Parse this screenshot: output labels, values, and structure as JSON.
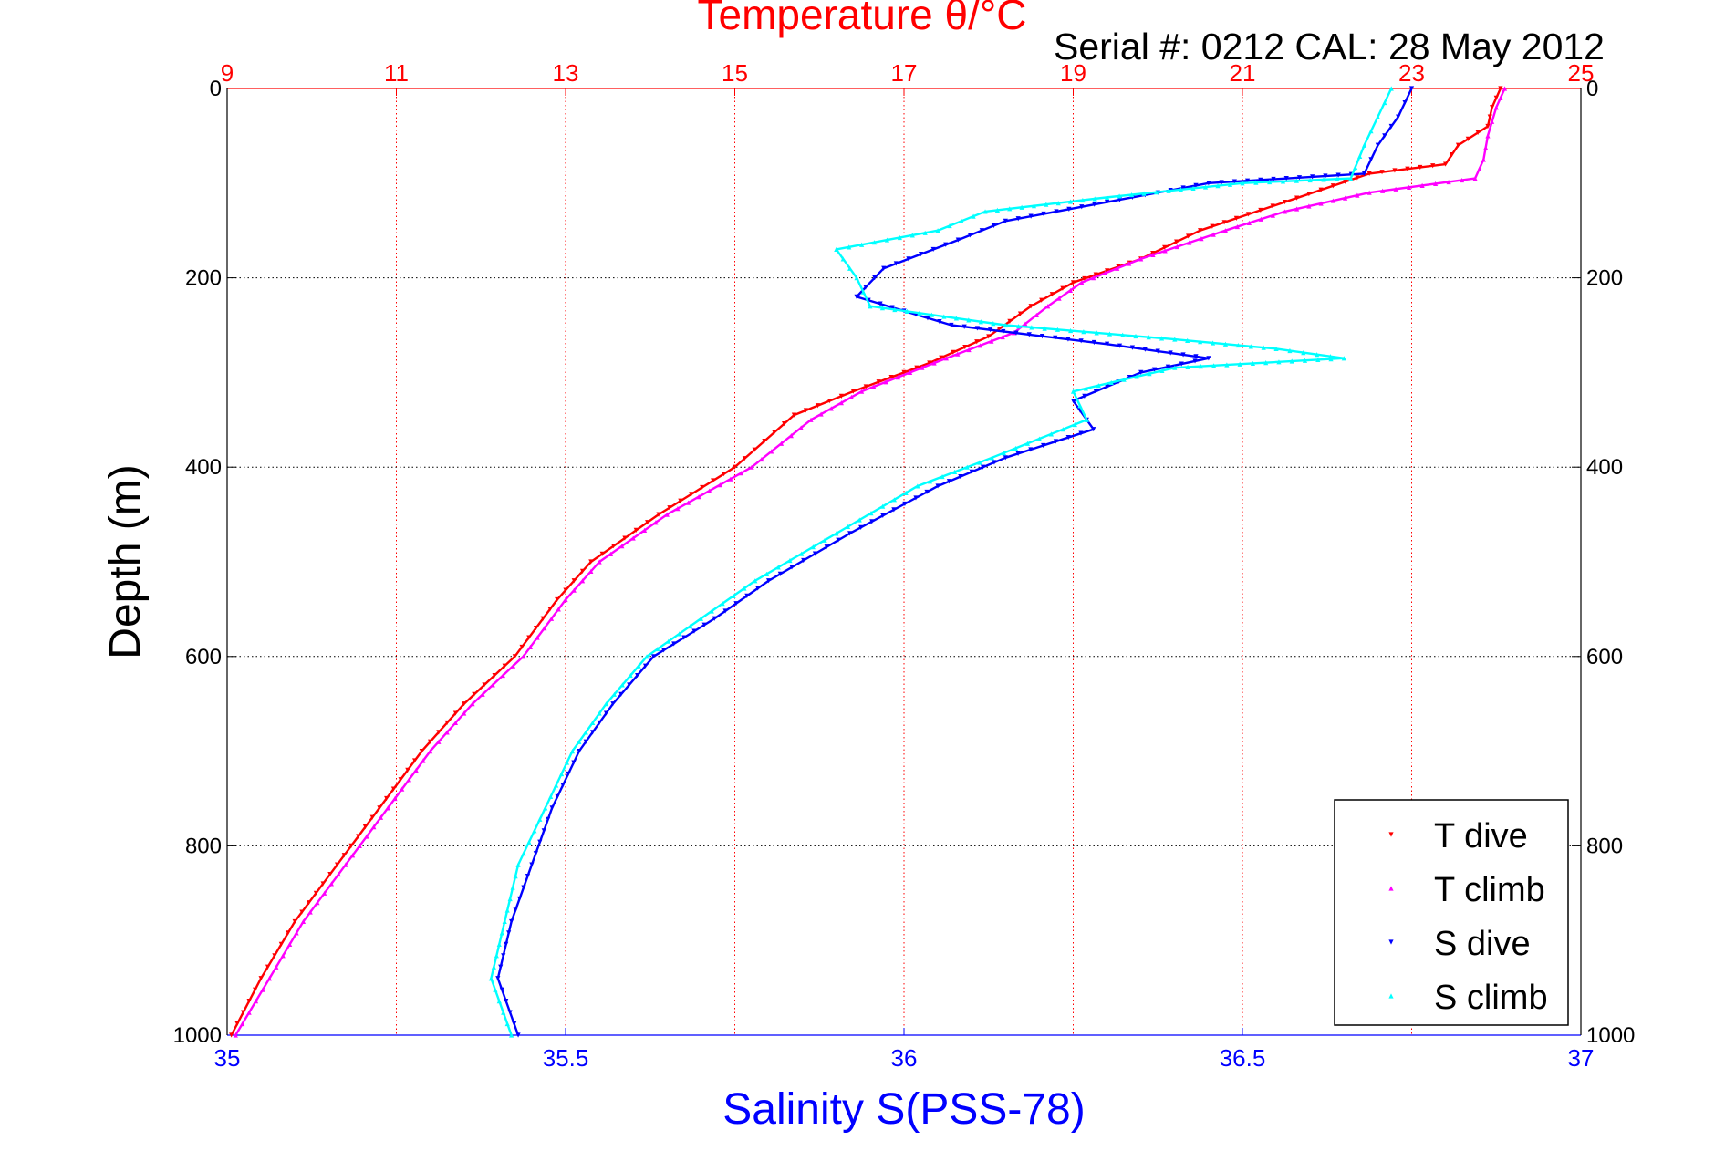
{
  "chart_data": {
    "type": "scatter",
    "title": "Temperature θ/°C",
    "subtitle": "Serial #: 0212  CAL: 28 May 2012",
    "xlabel": "Salinity S(PSS-78)",
    "ylabel": "Depth (m)",
    "x_top_label": "Temperature θ/°C",
    "x_bottom": {
      "label": "Salinity S(PSS-78)",
      "lim": [
        35,
        37
      ],
      "ticks": [
        "35",
        "35.5",
        "36",
        "36.5",
        "37"
      ],
      "color": "#0000ff"
    },
    "x_top": {
      "label": "Temperature θ/°C",
      "lim": [
        9,
        25
      ],
      "ticks": [
        "9",
        "11",
        "13",
        "15",
        "17",
        "19",
        "21",
        "23",
        "25"
      ],
      "color": "#ff0000"
    },
    "y": {
      "label": "Depth (m)",
      "lim": [
        0,
        1000
      ],
      "reversed": true,
      "ticks": [
        "0",
        "200",
        "400",
        "600",
        "800",
        "1000"
      ]
    },
    "grid": true,
    "legend_position": "bottom-right",
    "series": [
      {
        "name": "T dive",
        "axis": "temperature",
        "color": "#ff0000",
        "marker": "triangle-down",
        "points": [
          [
            24.05,
            0
          ],
          [
            23.95,
            20
          ],
          [
            23.9,
            40
          ],
          [
            23.55,
            60
          ],
          [
            23.4,
            80
          ],
          [
            22.5,
            90
          ],
          [
            21.5,
            120
          ],
          [
            20.5,
            150
          ],
          [
            19.8,
            180
          ],
          [
            19.0,
            205
          ],
          [
            18.5,
            230
          ],
          [
            18.0,
            262
          ],
          [
            17.3,
            290
          ],
          [
            16.4,
            320
          ],
          [
            15.7,
            345
          ],
          [
            15.0,
            400
          ],
          [
            14.1,
            450
          ],
          [
            13.3,
            500
          ],
          [
            12.9,
            540
          ],
          [
            12.4,
            600
          ],
          [
            11.8,
            650
          ],
          [
            11.3,
            700
          ],
          [
            10.8,
            760
          ],
          [
            10.3,
            820
          ],
          [
            9.8,
            880
          ],
          [
            9.4,
            940
          ],
          [
            9.05,
            1000
          ]
        ]
      },
      {
        "name": "T climb",
        "axis": "temperature",
        "color": "#ff00ff",
        "marker": "triangle-up",
        "points": [
          [
            24.1,
            0
          ],
          [
            24.0,
            20
          ],
          [
            23.9,
            50
          ],
          [
            23.85,
            75
          ],
          [
            23.75,
            95
          ],
          [
            22.5,
            110
          ],
          [
            21.5,
            130
          ],
          [
            20.8,
            150
          ],
          [
            19.8,
            180
          ],
          [
            19.1,
            205
          ],
          [
            18.7,
            230
          ],
          [
            18.3,
            258
          ],
          [
            17.5,
            285
          ],
          [
            16.5,
            320
          ],
          [
            15.9,
            350
          ],
          [
            15.2,
            400
          ],
          [
            14.2,
            450
          ],
          [
            13.4,
            500
          ],
          [
            13.0,
            540
          ],
          [
            12.5,
            600
          ],
          [
            11.9,
            650
          ],
          [
            11.4,
            700
          ],
          [
            10.9,
            760
          ],
          [
            10.4,
            820
          ],
          [
            9.9,
            880
          ],
          [
            9.5,
            940
          ],
          [
            9.1,
            1000
          ]
        ]
      },
      {
        "name": "S dive",
        "axis": "salinity",
        "color": "#0000ff",
        "marker": "triangle-down",
        "points": [
          [
            36.75,
            0
          ],
          [
            36.73,
            30
          ],
          [
            36.7,
            60
          ],
          [
            36.68,
            90
          ],
          [
            36.45,
            100
          ],
          [
            36.3,
            120
          ],
          [
            36.15,
            140
          ],
          [
            36.08,
            160
          ],
          [
            35.97,
            190
          ],
          [
            35.93,
            220
          ],
          [
            36.07,
            250
          ],
          [
            36.3,
            270
          ],
          [
            36.45,
            285
          ],
          [
            36.35,
            300
          ],
          [
            36.25,
            330
          ],
          [
            36.28,
            360
          ],
          [
            36.15,
            390
          ],
          [
            36.05,
            420
          ],
          [
            35.92,
            470
          ],
          [
            35.8,
            520
          ],
          [
            35.72,
            560
          ],
          [
            35.63,
            600
          ],
          [
            35.57,
            650
          ],
          [
            35.52,
            700
          ],
          [
            35.48,
            760
          ],
          [
            35.45,
            820
          ],
          [
            35.42,
            880
          ],
          [
            35.4,
            940
          ],
          [
            35.43,
            1000
          ]
        ]
      },
      {
        "name": "S climb",
        "axis": "salinity",
        "color": "#00ffff",
        "marker": "triangle-up",
        "points": [
          [
            36.72,
            0
          ],
          [
            36.7,
            30
          ],
          [
            36.68,
            60
          ],
          [
            36.66,
            95
          ],
          [
            36.5,
            100
          ],
          [
            36.3,
            115
          ],
          [
            36.12,
            130
          ],
          [
            36.05,
            150
          ],
          [
            35.9,
            170
          ],
          [
            35.93,
            200
          ],
          [
            35.95,
            230
          ],
          [
            36.15,
            250
          ],
          [
            36.4,
            265
          ],
          [
            36.55,
            275
          ],
          [
            36.65,
            285
          ],
          [
            36.4,
            295
          ],
          [
            36.25,
            320
          ],
          [
            36.27,
            350
          ],
          [
            36.13,
            390
          ],
          [
            36.02,
            420
          ],
          [
            35.9,
            470
          ],
          [
            35.78,
            520
          ],
          [
            35.7,
            560
          ],
          [
            35.62,
            600
          ],
          [
            35.56,
            650
          ],
          [
            35.51,
            700
          ],
          [
            35.47,
            760
          ],
          [
            35.43,
            820
          ],
          [
            35.41,
            880
          ],
          [
            35.39,
            940
          ],
          [
            35.42,
            1000
          ]
        ]
      }
    ]
  }
}
